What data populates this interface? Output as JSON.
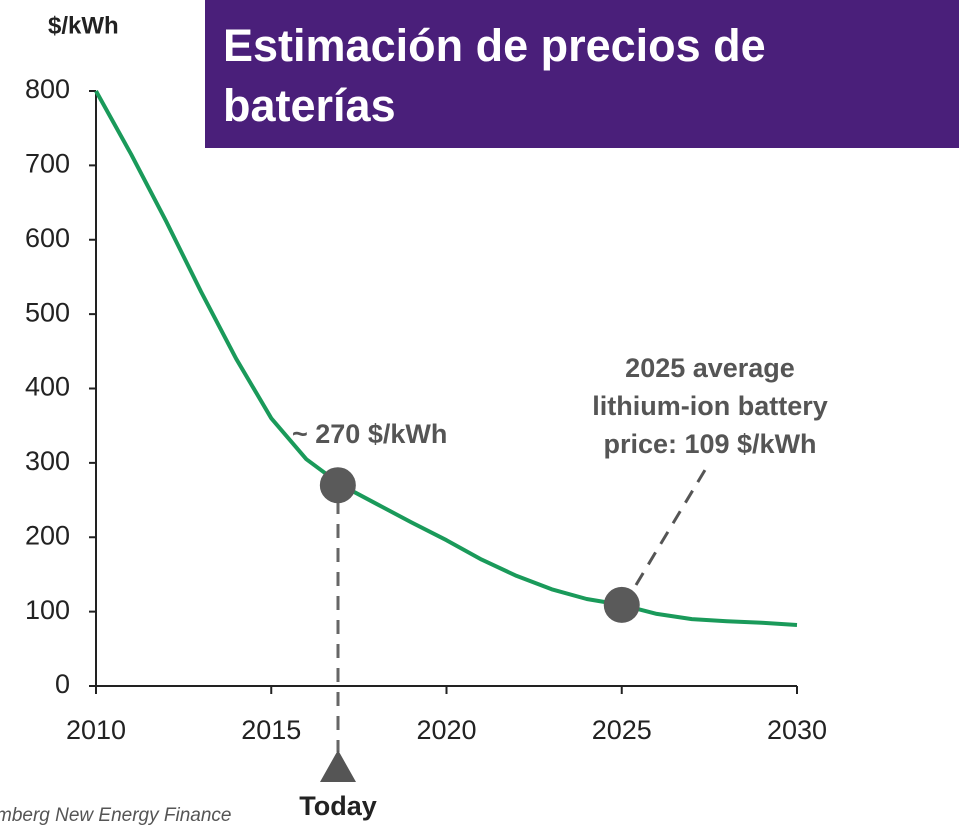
{
  "chart_data": {
    "type": "line",
    "title": "Estimación de precios de baterías",
    "y_label": "$/kWh",
    "source": "mberg New Energy Finance",
    "x": [
      2010,
      2011,
      2012,
      2013,
      2014,
      2015,
      2016,
      2017,
      2018,
      2019,
      2020,
      2021,
      2022,
      2023,
      2024,
      2025,
      2026,
      2027,
      2028,
      2029,
      2030
    ],
    "series": [
      {
        "color": "#1a9a5a",
        "values": [
          800,
          715,
          625,
          530,
          440,
          360,
          305,
          270,
          245,
          220,
          196,
          170,
          148,
          130,
          117,
          109,
          97,
          90,
          87,
          85,
          82
        ]
      }
    ],
    "xlim": [
      2010,
      2030
    ],
    "xticks": [
      2010,
      2015,
      2020,
      2025,
      2030
    ],
    "ylim": [
      0,
      800
    ],
    "yticks": [
      0,
      100,
      200,
      300,
      400,
      500,
      600,
      700,
      800
    ],
    "markers": [
      {
        "x": 2016.9,
        "y": 270,
        "color": "#5a5a5a"
      },
      {
        "x": 2025,
        "y": 109,
        "color": "#5a5a5a"
      }
    ],
    "annotations": {
      "today": "Today",
      "current": "~ 270 $/kWh",
      "forecast": [
        "2025 average",
        "lithium-ion battery",
        "price: 109 $/kWh"
      ]
    }
  }
}
